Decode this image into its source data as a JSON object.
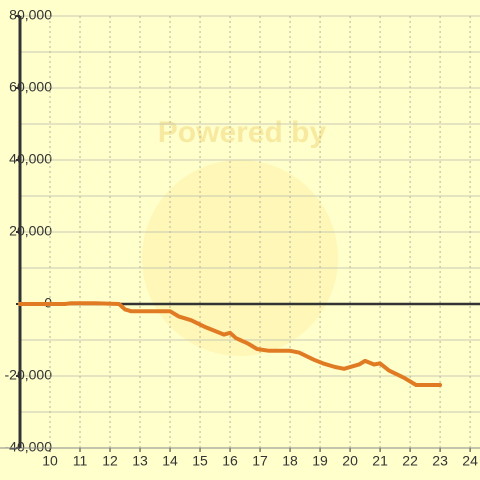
{
  "chart_data": {
    "type": "line",
    "watermark": "Powered by",
    "x": [
      9,
      10.5,
      10.7,
      11.5,
      12.3,
      12.5,
      12.7,
      14,
      14.3,
      14.7,
      15.2,
      15.5,
      15.8,
      16,
      16.2,
      16.6,
      16.9,
      17.3,
      18,
      18.3,
      18.8,
      19.1,
      19.5,
      19.8,
      20.3,
      20.5,
      20.8,
      21,
      21.3,
      21.8,
      22.2,
      23
    ],
    "series": [
      {
        "color": "#e07b24",
        "values": [
          0,
          0,
          200,
          200,
          0,
          -1500,
          -2000,
          -2000,
          -3500,
          -4500,
          -6500,
          -7500,
          -8500,
          -8000,
          -9500,
          -11000,
          -12500,
          -13000,
          -13000,
          -13500,
          -15500,
          -16500,
          -17500,
          -18000,
          -16800,
          -15800,
          -16800,
          -16500,
          -18500,
          -20500,
          -22500,
          -22500
        ]
      }
    ],
    "xlim": [
      9,
      24.33
    ],
    "xticks": [
      10,
      11,
      12,
      13,
      14,
      15,
      16,
      17,
      18,
      19,
      20,
      21,
      22,
      23,
      24
    ],
    "ylim": [
      -40000,
      80000
    ],
    "yticks": [
      {
        "value": -40000,
        "label": "-40,000"
      },
      {
        "value": -20000,
        "label": "-20,000"
      },
      0,
      {
        "value": 20000,
        "label": "20,000"
      },
      {
        "value": 40000,
        "label": "40,000"
      },
      {
        "value": 60000,
        "label": "60,000"
      },
      {
        "value": 80000,
        "label": "80,000"
      }
    ],
    "yminor": [
      -30000,
      -10000,
      10000,
      30000,
      50000,
      70000
    ],
    "grid": true
  }
}
